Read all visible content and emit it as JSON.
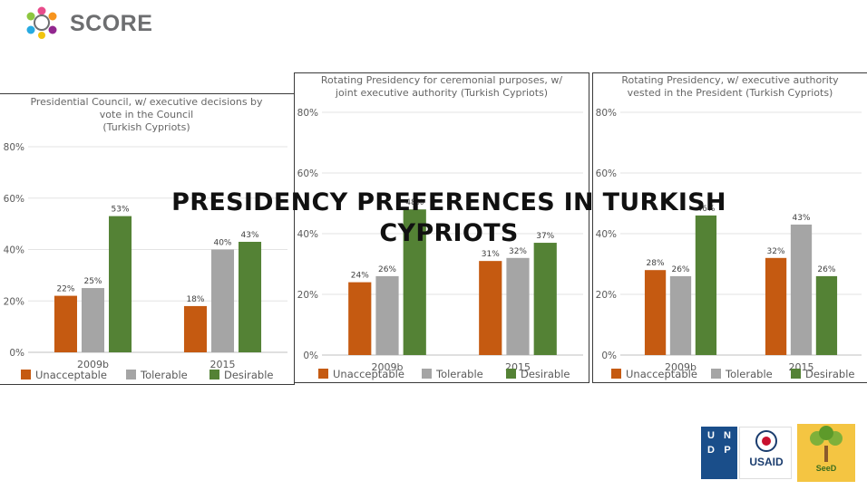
{
  "brand": {
    "name": "SCORE"
  },
  "main_title": "PRESIDENCY PREFERENCES IN TURKISH CYPRIOTS",
  "colors": {
    "unacceptable": "#c55a11",
    "tolerable": "#a5a5a5",
    "desirable": "#548235"
  },
  "partners": {
    "undp": "UNDP",
    "usaid": "USAID",
    "seed": "SeeD"
  },
  "chart_data": [
    {
      "type": "bar",
      "title": "Presidential Council, w/ executive decisions by\nvote in the Council\n(Turkish Cypriots)",
      "categories": [
        "2009b",
        "2015"
      ],
      "series": [
        {
          "name": "Unacceptable",
          "values": [
            22,
            18
          ]
        },
        {
          "name": "Tolerable",
          "values": [
            25,
            40
          ]
        },
        {
          "name": "Desirable",
          "values": [
            53,
            43
          ]
        }
      ],
      "yticks": [
        "0%",
        "20%",
        "40%",
        "60%",
        "80%"
      ],
      "ylim": [
        0,
        80
      ],
      "legend": "bottom"
    },
    {
      "type": "bar",
      "title": "Rotating Presidency for ceremonial purposes, w/\njoint executive authority (Turkish Cypriots)",
      "categories": [
        "2009b",
        "2015"
      ],
      "series": [
        {
          "name": "Unacceptable",
          "values": [
            24,
            31
          ]
        },
        {
          "name": "Tolerable",
          "values": [
            26,
            32
          ]
        },
        {
          "name": "Desirable",
          "values": [
            48,
            37
          ]
        }
      ],
      "yticks": [
        "0%",
        "20%",
        "40%",
        "60%",
        "80%"
      ],
      "ylim": [
        0,
        80
      ],
      "legend": "bottom"
    },
    {
      "type": "bar",
      "title": "Rotating Presidency, w/ executive authority\nvested in the President (Turkish Cypriots)",
      "categories": [
        "2009b",
        "2015"
      ],
      "series": [
        {
          "name": "Unacceptable",
          "values": [
            28,
            32
          ]
        },
        {
          "name": "Tolerable",
          "values": [
            26,
            43
          ]
        },
        {
          "name": "Desirable",
          "values": [
            46,
            26
          ]
        }
      ],
      "yticks": [
        "0%",
        "20%",
        "40%",
        "60%",
        "80%"
      ],
      "ylim": [
        0,
        80
      ],
      "legend": "bottom"
    }
  ]
}
